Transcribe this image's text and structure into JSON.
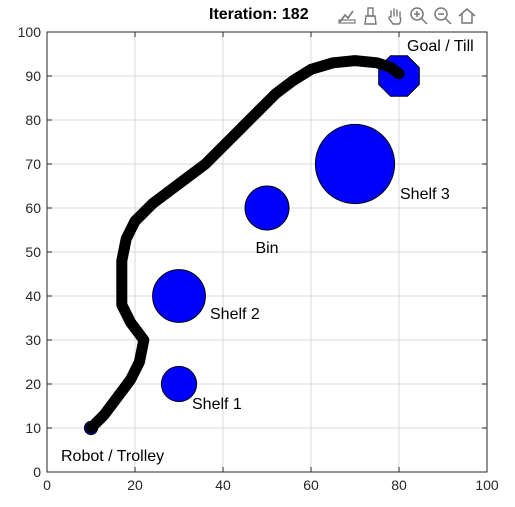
{
  "title": "Iteration: 182",
  "toolbar": {
    "icons": [
      "data-tips-icon",
      "brush-icon",
      "pan-hand-icon",
      "zoom-in-icon",
      "zoom-out-icon",
      "home-icon"
    ]
  },
  "chart_data": {
    "type": "scatter",
    "title": "Iteration: 182",
    "xlabel": "",
    "ylabel": "",
    "xlim": [
      0,
      100
    ],
    "ylim": [
      0,
      100
    ],
    "xticks": [
      0,
      20,
      40,
      60,
      80,
      100
    ],
    "yticks": [
      0,
      10,
      20,
      30,
      40,
      50,
      60,
      70,
      80,
      90,
      100
    ],
    "grid": true,
    "colors": {
      "obstacle": "#0000ff",
      "path": "#000000",
      "grid": "#d9d9d9"
    },
    "start": {
      "label": "Robot / Trolley",
      "x": 10,
      "y": 10,
      "radius": 1.5
    },
    "goal": {
      "label": "Goal / Till",
      "x": 80,
      "y": 90,
      "radius": 5,
      "shape": "octagon"
    },
    "obstacles": [
      {
        "label": "Shelf 1",
        "x": 30,
        "y": 20,
        "radius": 4
      },
      {
        "label": "Shelf 2",
        "x": 30,
        "y": 40,
        "radius": 6
      },
      {
        "label": "Bin",
        "x": 50,
        "y": 60,
        "radius": 5
      },
      {
        "label": "Shelf 3",
        "x": 70,
        "y": 70,
        "radius": 9
      }
    ],
    "path": [
      [
        10,
        10
      ],
      [
        13,
        13
      ],
      [
        16,
        17
      ],
      [
        19,
        21
      ],
      [
        21,
        25
      ],
      [
        22,
        30
      ],
      [
        19,
        34
      ],
      [
        17,
        38
      ],
      [
        17,
        43
      ],
      [
        17,
        48
      ],
      [
        18,
        53
      ],
      [
        20,
        57
      ],
      [
        24,
        61
      ],
      [
        28,
        64
      ],
      [
        32,
        67
      ],
      [
        36,
        70
      ],
      [
        40,
        74
      ],
      [
        44,
        78
      ],
      [
        48,
        82
      ],
      [
        52,
        86
      ],
      [
        56,
        89
      ],
      [
        60,
        91.5
      ],
      [
        65,
        93
      ],
      [
        70,
        93.5
      ],
      [
        75,
        93
      ],
      [
        78,
        92
      ],
      [
        80,
        90.5
      ]
    ]
  }
}
